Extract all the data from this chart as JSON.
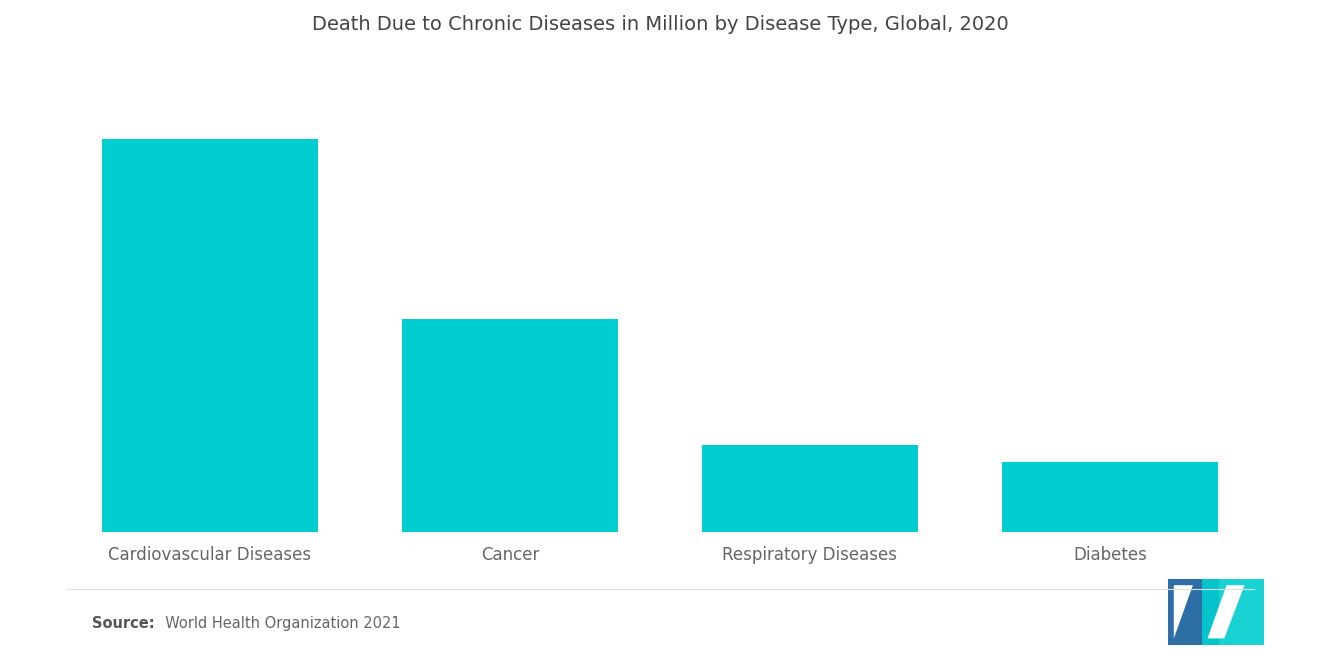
{
  "title": "Death Due to Chronic Diseases in Million by Disease Type, Global, 2020",
  "categories": [
    "Cardiovascular Diseases",
    "Cancer",
    "Respiratory Diseases",
    "Diabetes"
  ],
  "values": [
    18.5,
    10.0,
    4.1,
    3.3
  ],
  "bar_color": "#00CDD0",
  "background_color": "#ffffff",
  "title_fontsize": 14,
  "label_fontsize": 12,
  "source_bold": "Source:",
  "source_normal": "  World Health Organization 2021",
  "ylim": [
    0,
    22
  ],
  "bar_width": 0.72,
  "logo_blue": "#2E6EA6",
  "logo_teal": "#00CDD0"
}
